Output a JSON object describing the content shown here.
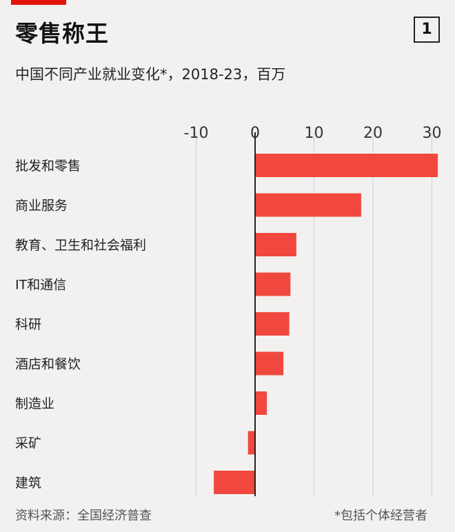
{
  "header": {
    "title": "零售称王",
    "badge": "1",
    "subtitle": "中国不同产业就业变化*，2018-23，百万"
  },
  "footer": {
    "source": "资料来源：全国经济普查",
    "note": "*包括个体经营者"
  },
  "colors": {
    "bar": "#f0483e",
    "accent": "#e3120b",
    "background": "#f2f1ef",
    "grid": "#cfcfcf",
    "zero_axis": "#222222"
  },
  "chart_data": {
    "type": "bar",
    "orientation": "horizontal",
    "title": "零售称王",
    "subtitle": "中国不同产业就业变化*，2018-23，百万",
    "categories": [
      "批发和零售",
      "商业服务",
      "教育、卫生和社会福利",
      "IT和通信",
      "科研",
      "酒店和餐饮",
      "制造业",
      "采矿",
      "建筑"
    ],
    "values": [
      31,
      18,
      7,
      6,
      5.8,
      4.8,
      2,
      -1.2,
      -7
    ],
    "xlim": [
      -10,
      32
    ],
    "xticks": [
      -10,
      0,
      10,
      20,
      30
    ],
    "xtick_labels": [
      "-10",
      "0",
      "10",
      "20",
      "30"
    ],
    "axis_position": "top",
    "grid": true
  }
}
